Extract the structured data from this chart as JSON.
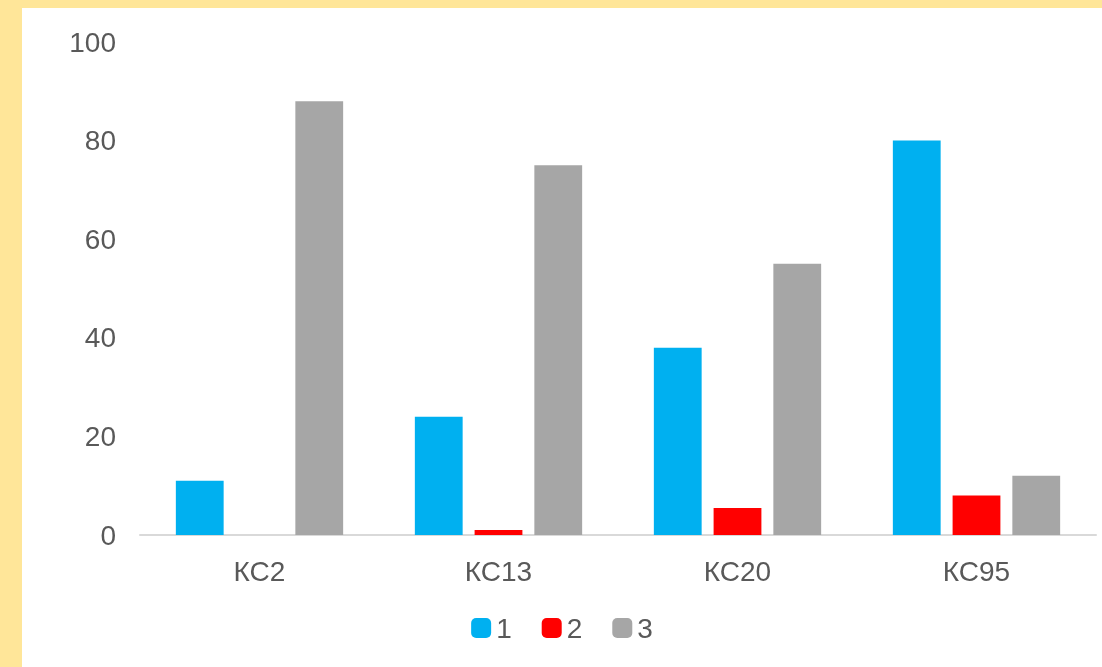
{
  "chart_data": {
    "type": "bar",
    "categories": [
      "КС2",
      "КС13",
      "КС20",
      "КС95"
    ],
    "series": [
      {
        "name": "1",
        "color": "#00b0f0",
        "values": [
          11,
          24,
          38,
          80
        ]
      },
      {
        "name": "2",
        "color": "#ff0000",
        "values": [
          null,
          1,
          5.5,
          8
        ]
      },
      {
        "name": "3",
        "color": "#a6a6a6",
        "values": [
          88,
          75,
          55,
          12
        ]
      }
    ],
    "ylim": [
      0,
      100
    ],
    "yticks": [
      0,
      20,
      40,
      60,
      80,
      100
    ],
    "grid": false,
    "legend": "bottom"
  }
}
